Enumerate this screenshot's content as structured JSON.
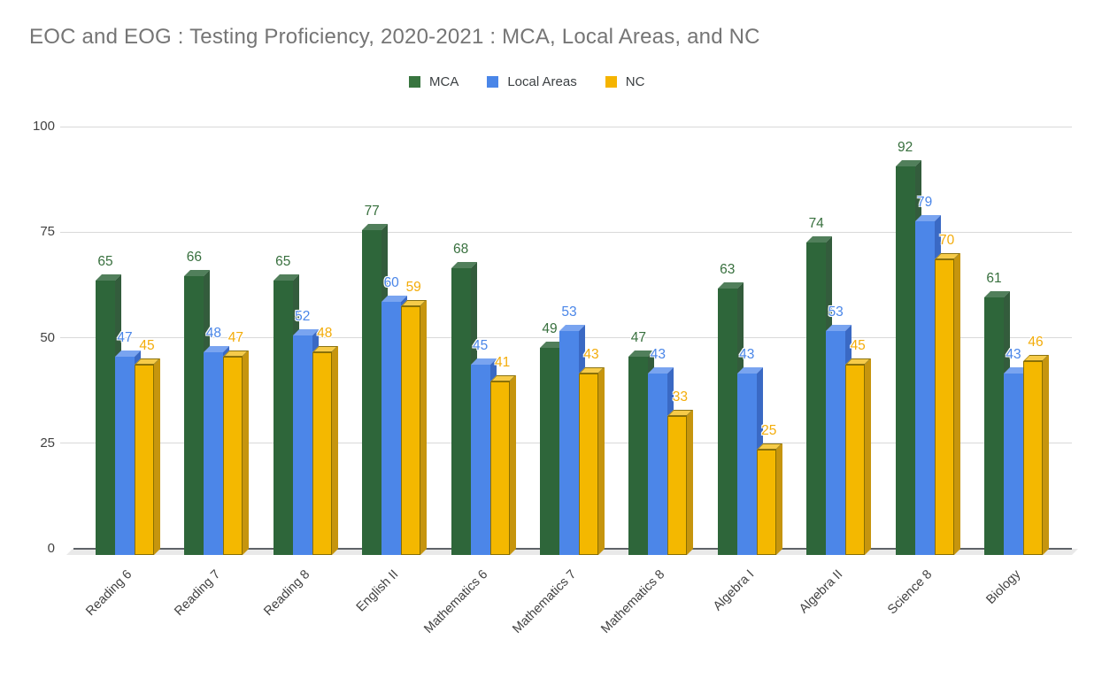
{
  "title": "EOC and EOG : Testing Proficiency, 2020-2021 : MCA, Local Areas, and NC",
  "chart_data": {
    "type": "bar",
    "style": "3d-column",
    "title": "EOC and EOG : Testing Proficiency, 2020-2021 : MCA, Local Areas, and NC",
    "categories": [
      "Reading 6",
      "Reading 7",
      "Reading 8",
      "English II",
      "Mathematics 6",
      "Mathematics 7",
      "Mathematics 8",
      "Algebra I",
      "Algebra II",
      "Science 8",
      "Biology"
    ],
    "series": [
      {
        "name": "MCA",
        "values": [
          65,
          66,
          65,
          77,
          68,
          49,
          47,
          63,
          74,
          92,
          61
        ],
        "color": "#2e663a",
        "top_color": "#517f5b",
        "side_color": "#335c3c",
        "label_color": "#38703e",
        "legend_color": "#38753f"
      },
      {
        "name": "Local Areas",
        "values": [
          47,
          48,
          52,
          60,
          45,
          53,
          43,
          43,
          53,
          79,
          43
        ],
        "color": "#4c86e8",
        "top_color": "#79a4f0",
        "side_color": "#3a69c4",
        "label_color": "#4a86e8",
        "legend_color": "#4a86e8"
      },
      {
        "name": "NC",
        "values": [
          45,
          47,
          48,
          59,
          41,
          43,
          33,
          25,
          45,
          70,
          46
        ],
        "color": "#f4b800",
        "top_color": "#f6cb49",
        "side_color": "#c6950e",
        "label_color": "#f3ac0a",
        "legend_color": "#f5b400"
      }
    ],
    "xlabel": "",
    "ylabel": "",
    "ylim": [
      0,
      100
    ],
    "yticks": [
      0,
      25,
      50,
      75,
      100
    ],
    "grid": true,
    "legend_position": "top",
    "data_labels": true
  },
  "colors": {
    "title_text": "#757575",
    "axis_text": "#424242",
    "legend_text": "#3c4043",
    "gridline": "#d9d9d9",
    "axis_line": "#5f6368",
    "floor": "#e9e9e9",
    "background": "#ffffff"
  }
}
